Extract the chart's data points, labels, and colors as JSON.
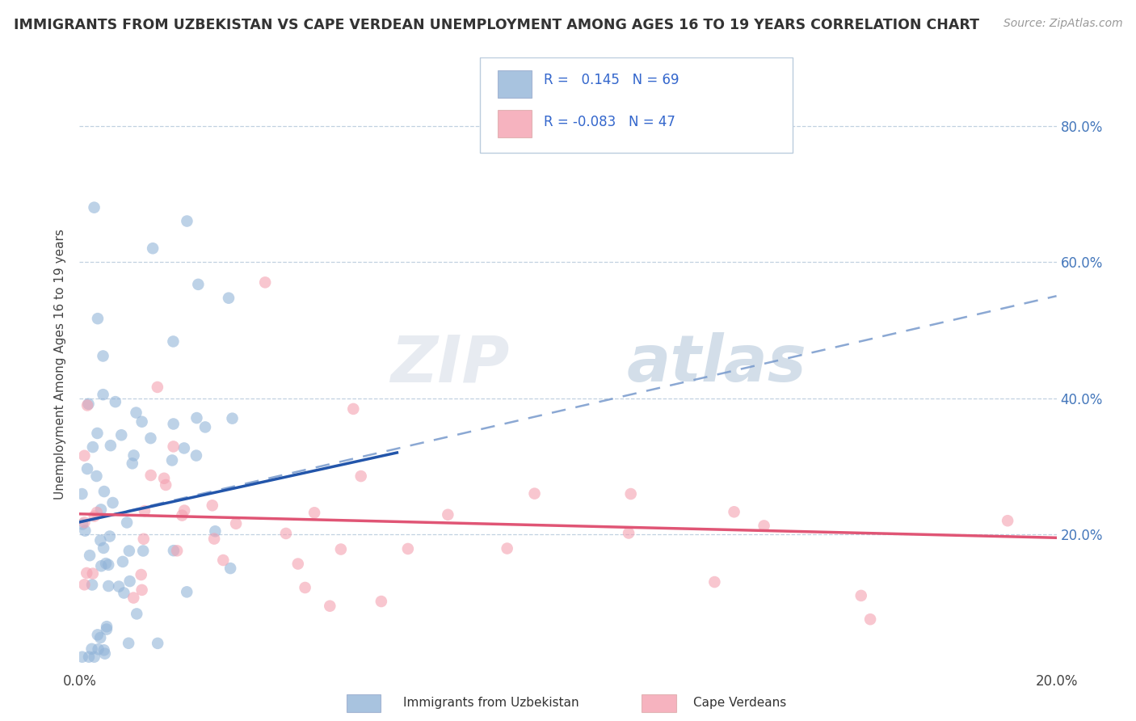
{
  "title": "IMMIGRANTS FROM UZBEKISTAN VS CAPE VERDEAN UNEMPLOYMENT AMONG AGES 16 TO 19 YEARS CORRELATION CHART",
  "source": "Source: ZipAtlas.com",
  "ylabel": "Unemployment Among Ages 16 to 19 years",
  "xlim": [
    0.0,
    0.2
  ],
  "ylim": [
    0.0,
    0.9
  ],
  "r_blue": 0.145,
  "n_blue": 69,
  "r_pink": -0.083,
  "n_pink": 47,
  "blue_color": "#92B4D8",
  "pink_color": "#F4A0B0",
  "trend_blue_solid_color": "#2255AA",
  "trend_blue_dashed_color": "#7799CC",
  "trend_pink_color": "#E05575",
  "watermark_color": "#C8D8E8",
  "legend_text_color": "#3366CC",
  "legend_N_color": "#3366CC",
  "right_axis_color": "#4477BB",
  "grid_color": "#BBCCDD"
}
